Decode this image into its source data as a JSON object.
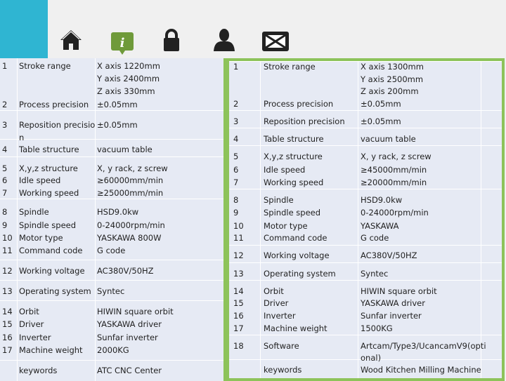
{
  "colors": {
    "accent_blue": "#2fb5d2",
    "border_green": "#8dc35a",
    "info_green": "#6f9a3a",
    "table_bg": "#e6eaf4"
  },
  "nav": [
    {
      "icon": "home-icon"
    },
    {
      "icon": "info-icon",
      "active": true
    },
    {
      "icon": "lock-icon"
    },
    {
      "icon": "user-icon"
    },
    {
      "icon": "mail-icon"
    }
  ],
  "left_table": {
    "lines": [
      {
        "n": "1",
        "label": "Stroke range",
        "value": "X axis    1220mm"
      },
      {
        "n": "",
        "label": "",
        "value": "Y axis    2400mm"
      },
      {
        "n": "",
        "label": "",
        "value": "Z axis    330mm"
      },
      {
        "n": "2",
        "label": "Process precision",
        "value": "±0.05mm"
      },
      {
        "n": "3",
        "label": "Reposition precisio",
        "value": "±0.05mm"
      },
      {
        "n": "",
        "label": "n",
        "value": ""
      },
      {
        "n": "4",
        "label": "Table structure",
        "value": "vacuum table"
      },
      {
        "n": "5",
        "label": "X,y,z structure",
        "value": "X, y rack, z screw"
      },
      {
        "n": "6",
        "label": "Idle speed",
        "value": "≥60000mm/min"
      },
      {
        "n": "7",
        "label": "Working speed",
        "value": "≥25000mm/min"
      },
      {
        "n": "8",
        "label": "Spindle",
        "value": "HSD9.0kw"
      },
      {
        "n": "9",
        "label": "Spindle speed",
        "value": "0-24000rpm/min"
      },
      {
        "n": "10",
        "label": "Motor type",
        "value": "YASKAWA 800W"
      },
      {
        "n": "11",
        "label": "Command code",
        "value": "G code"
      },
      {
        "n": "12",
        "label": "Working voltage",
        "value": "AC380V/50HZ"
      },
      {
        "n": "13",
        "label": "Operating system",
        "value": "Syntec"
      },
      {
        "n": "14",
        "label": "Orbit",
        "value": "HIWIN square orbit"
      },
      {
        "n": "15",
        "label": "Driver",
        "value": "YASKAWA driver"
      },
      {
        "n": "16",
        "label": "Inverter",
        "value": "Sunfar inverter"
      },
      {
        "n": "17",
        "label": "Machine weight",
        "value": "2000KG"
      },
      {
        "n": "",
        "label": "keywords",
        "value": "ATC CNC Center"
      }
    ]
  },
  "right_table": {
    "lines": [
      {
        "n": "1",
        "label": "Stroke range",
        "value": "X axis   1300mm"
      },
      {
        "n": "",
        "label": "",
        "value": "Y axis   2500mm"
      },
      {
        "n": "",
        "label": "",
        "value": "Z axis   200mm"
      },
      {
        "n": "2",
        "label": "Process precision",
        "value": "±0.05mm"
      },
      {
        "n": "3",
        "label": "Reposition precision",
        "value": "±0.05mm"
      },
      {
        "n": "4",
        "label": "Table structure",
        "value": "vacuum table"
      },
      {
        "n": "5",
        "label": "X,y,z structure",
        "value": "X, y rack, z screw"
      },
      {
        "n": "6",
        "label": "Idle speed",
        "value": "≥45000mm/min"
      },
      {
        "n": "7",
        "label": "Working speed",
        "value": "≥20000mm/min"
      },
      {
        "n": "8",
        "label": "Spindle",
        "value": "HSD9.0kw"
      },
      {
        "n": "9",
        "label": "Spindle speed",
        "value": "0-24000rpm/min"
      },
      {
        "n": "10",
        "label": "Motor type",
        "value": "YASKAWA"
      },
      {
        "n": "11",
        "label": "Command code",
        "value": "G code"
      },
      {
        "n": "12",
        "label": "Working voltage",
        "value": "AC380V/50HZ"
      },
      {
        "n": "13",
        "label": "Operating system",
        "value": "Syntec"
      },
      {
        "n": "14",
        "label": "Orbit",
        "value": "HIWIN square orbit"
      },
      {
        "n": "15",
        "label": "Driver",
        "value": "YASKAWA driver"
      },
      {
        "n": "16",
        "label": "Inverter",
        "value": "Sunfar inverter"
      },
      {
        "n": "17",
        "label": "Machine weight",
        "value": "1500KG"
      },
      {
        "n": "18",
        "label": "Software",
        "value": "Artcam/Type3/UcancamV9(opti"
      },
      {
        "n": "",
        "label": "",
        "value": "onal)"
      },
      {
        "n": "",
        "label": "keywords",
        "value": "Wood Kitchen Milling Machine"
      }
    ]
  }
}
